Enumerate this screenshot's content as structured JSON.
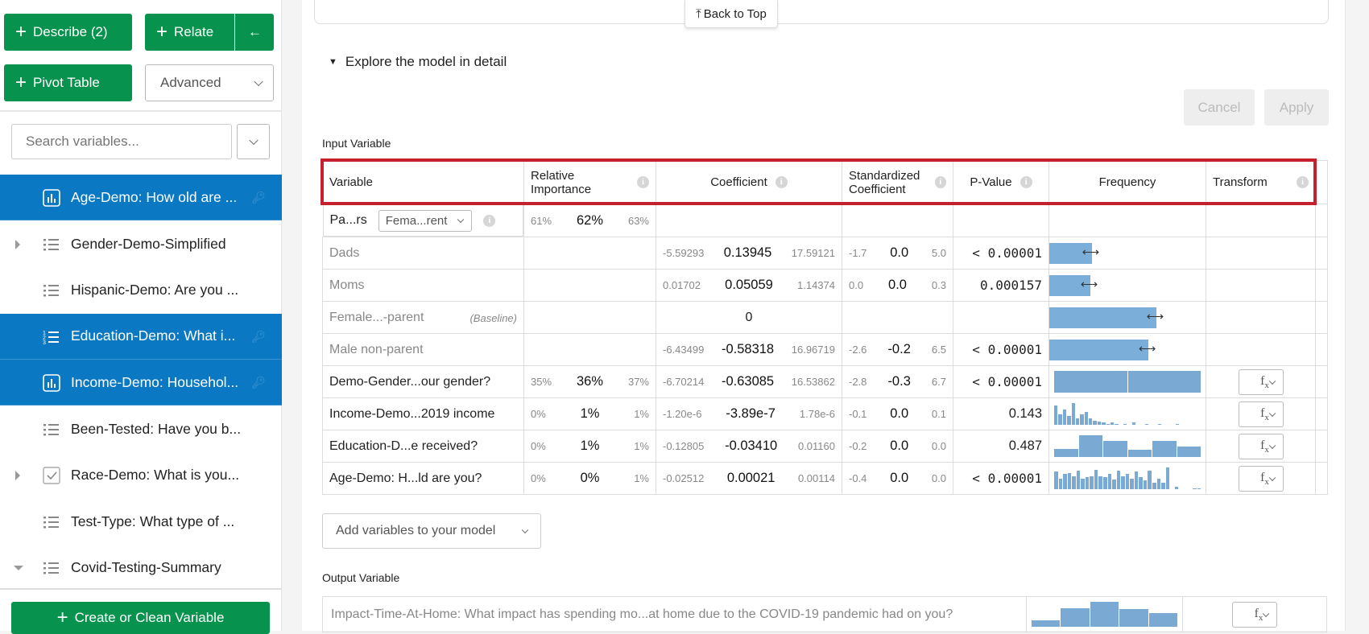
{
  "sidebar": {
    "describe_label": "Describe (2)",
    "relate_label": "Relate",
    "back_arrow": "←",
    "pivot_label": "Pivot Table",
    "advanced_label": "Advanced",
    "search_placeholder": "Search variables...",
    "items": [
      {
        "label": "Age-Demo: How old are ...",
        "icon": "bar-chart-icon",
        "selected": true,
        "expand": ""
      },
      {
        "label": "Gender-Demo-Simplified",
        "icon": "list-icon",
        "selected": false,
        "expand": "right"
      },
      {
        "label": "Hispanic-Demo: Are you ...",
        "icon": "list-icon",
        "selected": false,
        "expand": ""
      },
      {
        "label": "Education-Demo: What i...",
        "icon": "numbered-list-icon",
        "selected": true,
        "expand": ""
      },
      {
        "label": "Income-Demo: Househol...",
        "icon": "bar-chart-icon",
        "selected": true,
        "expand": ""
      },
      {
        "label": "Been-Tested: Have you b...",
        "icon": "list-icon",
        "selected": false,
        "expand": ""
      },
      {
        "label": "Race-Demo: What is you...",
        "icon": "checkbox-icon",
        "selected": false,
        "expand": "right"
      },
      {
        "label": "Test-Type: What type of ...",
        "icon": "list-icon",
        "selected": false,
        "expand": ""
      },
      {
        "label": "Covid-Testing-Summary",
        "icon": "list-icon",
        "selected": false,
        "expand": "down"
      }
    ],
    "create_label": "Create or Clean Variable"
  },
  "main": {
    "back_to_top": "Back to Top",
    "explore_label": "Explore the model in detail",
    "cancel_label": "Cancel",
    "apply_label": "Apply",
    "input_label": "Input Variable",
    "add_variables_label": "Add variables to your model",
    "output_label": "Output Variable",
    "columns": [
      "Variable",
      "Relative Importance",
      "Coefficient",
      "Standardized Coefficient",
      "P-Value",
      "Frequency",
      "Transform"
    ],
    "rows": [
      {
        "name": "Pa...rs",
        "dropdown": "Fema...rent",
        "ri": [
          "61%",
          "62%",
          "63%"
        ],
        "coef": null,
        "std": null,
        "p": "",
        "p_bold": false,
        "freq": null,
        "fx": false,
        "sub": false
      },
      {
        "name": "Dads",
        "ri": null,
        "coef": [
          "-5.59293",
          "0.13945",
          "17.59121"
        ],
        "std": [
          "-1.7",
          "0.0",
          "5.0"
        ],
        "p": "< 0.00001",
        "p_bold": true,
        "freq": {
          "bar": 0.27
        },
        "fx": false,
        "sub": true
      },
      {
        "name": "Moms",
        "ri": null,
        "coef": [
          "0.01702",
          "0.05059",
          "1.14374"
        ],
        "std": [
          "0.0",
          "0.0",
          "0.3"
        ],
        "p": "0.000157",
        "p_bold": true,
        "freq": {
          "bar": 0.26
        },
        "fx": false,
        "sub": true
      },
      {
        "name": "Female...-parent",
        "baseline": "(Baseline)",
        "ri": null,
        "coef_single": "0",
        "std": null,
        "p": "",
        "p_bold": false,
        "freq": {
          "bar": 0.68
        },
        "fx": false,
        "sub": true
      },
      {
        "name": "Male non-parent",
        "ri": null,
        "coef": [
          "-6.43499",
          "-0.58318",
          "16.96719"
        ],
        "std": [
          "-2.6",
          "-0.2",
          "6.5"
        ],
        "p": "< 0.00001",
        "p_bold": true,
        "freq": {
          "bar": 0.63
        },
        "fx": false,
        "sub": true
      },
      {
        "name": "Demo-Gender...our gender?",
        "ri": [
          "35%",
          "36%",
          "37%"
        ],
        "coef": [
          "-6.70214",
          "-0.63085",
          "16.53862"
        ],
        "std": [
          "-2.8",
          "-0.3",
          "6.7"
        ],
        "p": "< 0.00001",
        "p_bold": true,
        "freq": {
          "hist": [
            1,
            1
          ]
        },
        "fx": true,
        "sub": false
      },
      {
        "name": "Income-Demo...2019 income",
        "ri": [
          "0%",
          "1%",
          "1%"
        ],
        "coef": [
          "-1.20e-6",
          "-3.89e-7",
          "1.78e-6"
        ],
        "std": [
          "-0.1",
          "0.0",
          "0.1"
        ],
        "p": "0.143",
        "p_bold": false,
        "freq": {
          "hist": [
            0.9,
            0.5,
            0.7,
            0.4,
            1,
            0.3,
            0.5,
            0.6,
            0.3,
            0.2,
            0.15,
            0.1,
            0.05,
            0.1,
            0.05,
            0,
            0.05,
            0,
            0.1,
            0,
            0,
            0.04,
            0,
            0,
            0.04,
            0,
            0,
            0,
            0.04,
            0,
            0,
            0,
            0,
            0
          ]
        },
        "fx": true,
        "sub": false
      },
      {
        "name": "Education-D...e received?",
        "ri": [
          "0%",
          "1%",
          "1%"
        ],
        "coef": [
          "-0.12805",
          "-0.03410",
          "0.01160"
        ],
        "std": [
          "-0.2",
          "0.0",
          "0.0"
        ],
        "p": "0.487",
        "p_bold": false,
        "freq": {
          "hist": [
            0.35,
            0.95,
            0.7,
            0.3,
            0.7,
            0.45
          ]
        },
        "fx": true,
        "sub": false
      },
      {
        "name": "Age-Demo: H...ld are you?",
        "ri": [
          "0%",
          "0%",
          "1%"
        ],
        "coef": [
          "-0.02512",
          "0.00021",
          "0.00114"
        ],
        "std": [
          "-0.4",
          "0.0",
          "0.0"
        ],
        "p": "< 0.00001",
        "p_bold": true,
        "freq": {
          "hist": [
            0.8,
            0.5,
            0.7,
            0.75,
            0.6,
            0.85,
            0.5,
            0.55,
            0.6,
            0.9,
            0.6,
            0.55,
            0.7,
            0.45,
            0.85,
            0.6,
            0.7,
            0.5,
            0.8,
            0.55,
            0.4,
            0.85,
            0.3,
            0.5,
            0.3,
            1,
            0,
            0.1,
            0,
            0,
            0,
            0.05,
            0.05
          ]
        },
        "fx": true,
        "sub": false
      }
    ],
    "output": {
      "name": "Impact-Time-At-Home: What impact has spending mo...at home due to the COVID-19 pandemic had on you?",
      "hist": [
        0.25,
        0.75,
        1,
        0.7,
        0.55
      ]
    },
    "fx_label": "f",
    "fx_sub": "x"
  },
  "colors": {
    "green": "#07934d",
    "selected": "#0a78c2",
    "bar": "#7bafd9",
    "highlight": "#c4202e"
  }
}
